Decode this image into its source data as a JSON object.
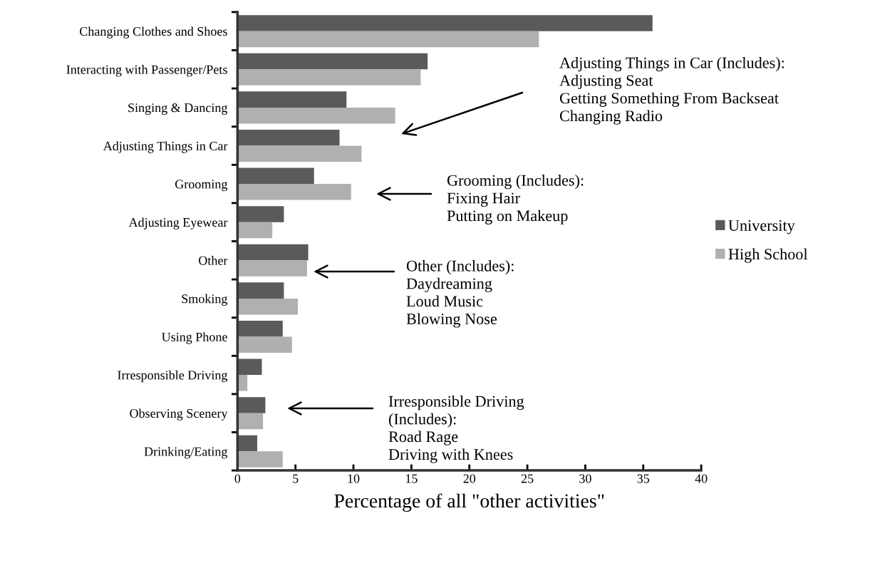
{
  "chart_data": {
    "type": "bar",
    "orientation": "horizontal",
    "xlabel": "Percentage of all \"other activities\"",
    "categories": [
      "Changing Clothes and Shoes",
      "Interacting with Passenger/Pets",
      "Singing & Dancing",
      "Adjusting Things in Car",
      "Grooming",
      "Adjusting Eyewear",
      "Other",
      "Smoking",
      "Using Phone",
      "Irresponsible Driving",
      "Observing Scenery",
      "Drinking/Eating"
    ],
    "series": [
      {
        "name": "University",
        "color": "#5a5a5a",
        "values": [
          35.8,
          16.4,
          9.4,
          8.8,
          6.6,
          4.0,
          6.1,
          4.0,
          3.9,
          2.1,
          2.4,
          1.7
        ]
      },
      {
        "name": "High School",
        "color": "#b0b0b0",
        "values": [
          26.0,
          15.8,
          13.6,
          10.7,
          9.8,
          3.0,
          6.0,
          5.2,
          4.7,
          0.85,
          2.2,
          3.9
        ]
      }
    ],
    "xlim": [
      0,
      40
    ],
    "xticks": [
      0,
      5,
      10,
      15,
      20,
      25,
      30,
      35,
      40
    ],
    "grid": false,
    "legend": "right",
    "annotations": [
      "Adjusting Things in Car (Includes):\nAdjusting Seat\nGetting Something From Backseat\nChanging Radio",
      "Grooming (Includes):\nFixing Hair\nPutting on Makeup",
      "Other (Includes):\nDaydreaming\nLoud Music\nBlowing Nose",
      "Irresponsible Driving\n(Includes):\nRoad Rage\nDriving with Knees"
    ]
  }
}
